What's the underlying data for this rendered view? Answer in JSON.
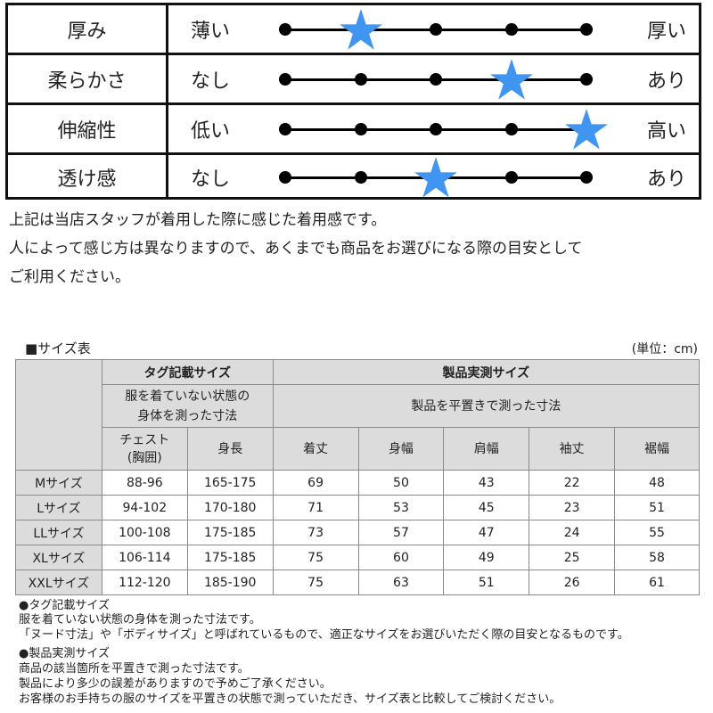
{
  "feel_chart": {
    "star_color": "#3f95f0",
    "scale_points": 5,
    "rows": [
      {
        "label": "厚み",
        "left": "薄い",
        "right": "厚い",
        "value": 2
      },
      {
        "label": "柔らかさ",
        "left": "なし",
        "right": "あり",
        "value": 4
      },
      {
        "label": "伸縮性",
        "left": "低い",
        "right": "高い",
        "value": 5
      },
      {
        "label": "透け感",
        "left": "なし",
        "right": "あり",
        "value": 3
      }
    ]
  },
  "notes": [
    "上記は当店スタッフが着用した際に感じた着用感です。",
    "人によって感じ方は異なりますので、あくまでも商品をお選びになる際の目安として",
    "ご利用ください。"
  ],
  "size_table": {
    "title": "■サイズ表",
    "unit": "(単位：cm)",
    "group_tag": "タグ記載サイズ",
    "group_tag_desc_1": "服を着ていない状態の",
    "group_tag_desc_2": "身体を測った寸法",
    "group_product": "製品実測サイズ",
    "group_product_desc": "製品を平置きで測った寸法",
    "columns": {
      "chest_1": "チェスト",
      "chest_2": "(胸囲)",
      "height": "身長",
      "length": "着丈",
      "body_width": "身幅",
      "shoulder": "肩幅",
      "sleeve": "袖丈",
      "hem": "裾幅"
    },
    "rows": [
      {
        "size": "Mサイズ",
        "chest": "88-96",
        "height": "165-175",
        "length": "69",
        "body_width": "50",
        "shoulder": "43",
        "sleeve": "22",
        "hem": "48"
      },
      {
        "size": "Lサイズ",
        "chest": "94-102",
        "height": "170-180",
        "length": "71",
        "body_width": "53",
        "shoulder": "45",
        "sleeve": "23",
        "hem": "51"
      },
      {
        "size": "LLサイズ",
        "chest": "100-108",
        "height": "175-185",
        "length": "73",
        "body_width": "57",
        "shoulder": "47",
        "sleeve": "24",
        "hem": "55"
      },
      {
        "size": "XLサイズ",
        "chest": "106-114",
        "height": "175-185",
        "length": "75",
        "body_width": "60",
        "shoulder": "49",
        "sleeve": "25",
        "hem": "58"
      },
      {
        "size": "XXLサイズ",
        "chest": "112-120",
        "height": "185-190",
        "length": "75",
        "body_width": "63",
        "shoulder": "51",
        "sleeve": "26",
        "hem": "61"
      }
    ]
  },
  "footnotes": {
    "tag_heading": "●タグ記載サイズ",
    "tag_line_1": "服を着ていない状態の身体を測った寸法です。",
    "tag_line_2": "「ヌード寸法」や「ボディサイズ」と呼ばれているもので、適正なサイズをお選びいただく際の目安となるものです。",
    "product_heading": "●製品実測サイズ",
    "product_line_1": "商品の該当箇所を平置きで測った寸法です。",
    "product_line_2": "製品により多少の誤差がありますので予めご了承ください。",
    "product_line_3": "お客様のお手持ちの服のサイズを平置きの状態で測っていただき、サイズ表と比較してご検討ください。"
  }
}
